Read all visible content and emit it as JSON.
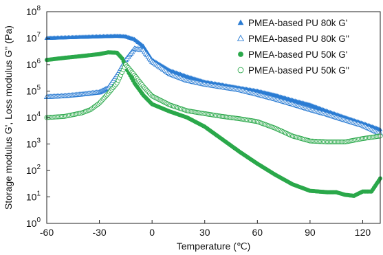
{
  "chart_data": {
    "type": "scatter",
    "xlabel": "Temperature (℃)",
    "ylabel": "Storage modulus G', Loss modulus G'' (Pa)",
    "xlim": [
      -60,
      130
    ],
    "ylim_log10": [
      0,
      8
    ],
    "y_scale": "log",
    "x_ticks": [
      -60,
      -30,
      0,
      30,
      60,
      90,
      120
    ],
    "x_tick_labels": [
      "-60",
      "-30",
      "0",
      "30",
      "60",
      "90",
      "120"
    ],
    "y_ticks": [
      {
        "base": "10",
        "exp": "0"
      },
      {
        "base": "10",
        "exp": "1"
      },
      {
        "base": "10",
        "exp": "2"
      },
      {
        "base": "10",
        "exp": "3"
      },
      {
        "base": "10",
        "exp": "4"
      },
      {
        "base": "10",
        "exp": "5"
      },
      {
        "base": "10",
        "exp": "6"
      },
      {
        "base": "10",
        "exp": "7"
      },
      {
        "base": "10",
        "exp": "8"
      }
    ],
    "grid": false,
    "legend_position": "top-right",
    "series": [
      {
        "name": "PMEA-based PU 80k G'",
        "marker": "triangle-filled",
        "color": "#2b7cd3",
        "x": [
          -60,
          -50,
          -40,
          -30,
          -20,
          -15,
          -10,
          -5,
          0,
          10,
          20,
          30,
          40,
          50,
          60,
          70,
          80,
          90,
          100,
          110,
          120,
          130
        ],
        "y": [
          10000000.0,
          10500000.0,
          11000000.0,
          11500000.0,
          12000000.0,
          11500000.0,
          9000000.0,
          5000000.0,
          1500000.0,
          600000.0,
          350000.0,
          220000.0,
          170000.0,
          130000.0,
          100000.0,
          70000.0,
          45000.0,
          30000.0,
          17000.0,
          10000.0,
          6000.0,
          3500.0
        ]
      },
      {
        "name": "PMEA-based PU 80k G''",
        "marker": "triangle-open",
        "color": "#2b7cd3",
        "x": [
          -60,
          -50,
          -40,
          -30,
          -25,
          -20,
          -15,
          -10,
          -5,
          0,
          10,
          20,
          30,
          40,
          50,
          60,
          70,
          80,
          90,
          100,
          110,
          120,
          130
        ],
        "y": [
          60000.0,
          65000.0,
          75000.0,
          90000.0,
          130000.0,
          400000.0,
          1500000.0,
          4000000.0,
          3500000.0,
          1300000.0,
          450000.0,
          250000.0,
          180000.0,
          140000.0,
          110000.0,
          75000.0,
          50000.0,
          32000.0,
          20000.0,
          13000.0,
          8000.0,
          5000.0,
          2500.0
        ]
      },
      {
        "name": "PMEA-based PU 50k G'",
        "marker": "circle-filled",
        "color": "#2aa84a",
        "x": [
          -60,
          -50,
          -40,
          -30,
          -25,
          -20,
          -17,
          -14,
          -10,
          -5,
          0,
          10,
          20,
          30,
          40,
          50,
          60,
          70,
          80,
          90,
          100,
          105,
          110,
          115,
          120,
          125,
          130
        ],
        "y": [
          1500000.0,
          1800000.0,
          2100000.0,
          2500000.0,
          2900000.0,
          2800000.0,
          1700000.0,
          600000.0,
          200000.0,
          70000.0,
          32000.0,
          17000.0,
          10000.0,
          4500.0,
          1500.0,
          500.0,
          180.0,
          70.0,
          30.0,
          17.0,
          15.0,
          15.0,
          12.0,
          11.0,
          16.0,
          16.0,
          50.0
        ]
      },
      {
        "name": "PMEA-based PU 50k G''",
        "marker": "circle-open",
        "color": "#2aa84a",
        "x": [
          -60,
          -50,
          -40,
          -35,
          -30,
          -25,
          -20,
          -15,
          -10,
          -5,
          0,
          10,
          20,
          30,
          40,
          50,
          60,
          70,
          80,
          90,
          100,
          110,
          120,
          130
        ],
        "y": [
          10000.0,
          11000.0,
          15000.0,
          20000.0,
          35000.0,
          80000.0,
          200000.0,
          1000000.0,
          400000.0,
          150000.0,
          65000.0,
          30000.0,
          18000.0,
          14000.0,
          11000.0,
          9000.0,
          7000.0,
          4000.0,
          2000.0,
          1300.0,
          1200.0,
          1200.0,
          1600.0,
          2000.0
        ]
      }
    ]
  }
}
